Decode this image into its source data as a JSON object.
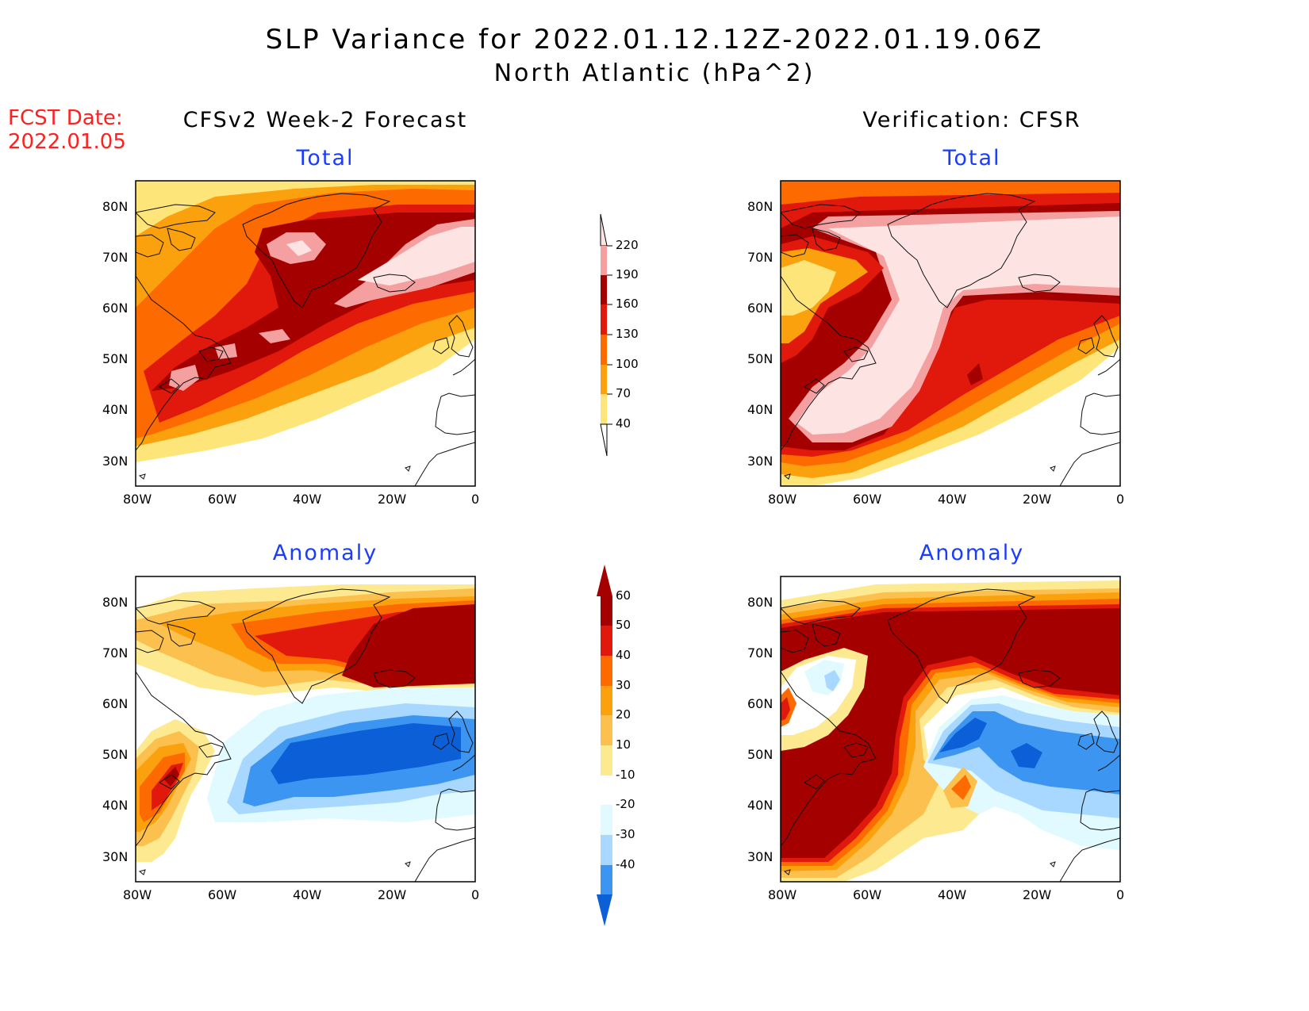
{
  "title": "SLP Variance for 2022.01.12.12Z-2022.01.19.06Z",
  "subtitle": "North Atlantic (hPa^2)",
  "fcst_label": "FCST Date:",
  "fcst_date": "2022.01.05",
  "left_column_title": "CFSv2 Week-2 Forecast",
  "right_column_title": "Verification: CFSR",
  "panels": [
    {
      "title": "Total"
    },
    {
      "title": "Total"
    },
    {
      "title": "Anomaly"
    },
    {
      "title": "Anomaly"
    }
  ],
  "lat_labels": [
    "80N",
    "70N",
    "60N",
    "50N",
    "40N",
    "30N"
  ],
  "lon_labels": [
    "80W",
    "60W",
    "40W",
    "20W",
    "0"
  ],
  "total_colorbar": {
    "levels": [
      "220",
      "190",
      "160",
      "130",
      "100",
      "70",
      "40"
    ],
    "colors": [
      "#fde4e2",
      "#f4a0a0",
      "#a50000",
      "#e0190c",
      "#fd6a00",
      "#fca10e",
      "#fde579"
    ]
  },
  "anomaly_colorbar": {
    "levels": [
      "60",
      "50",
      "40",
      "30",
      "20",
      "10",
      "-10",
      "-20",
      "-30",
      "-40"
    ],
    "colors": [
      "#a50000",
      "#e0190c",
      "#fd6a00",
      "#fca10e",
      "#fbc04e",
      "#fde98f",
      "#ffffff",
      "#e0faff",
      "#a8d8ff",
      "#3c95f0",
      "#0d5fd8"
    ]
  }
}
